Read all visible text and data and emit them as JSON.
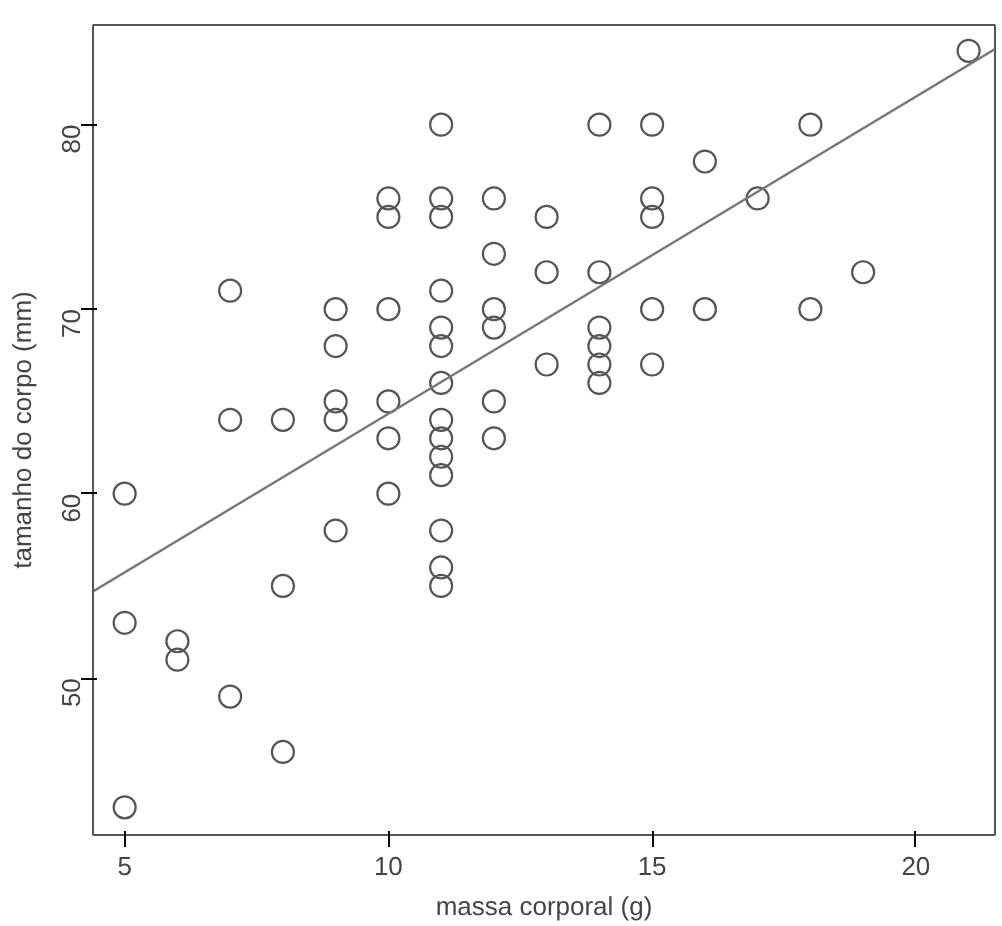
{
  "chart_data": {
    "type": "scatter",
    "xlabel": "massa corporal (g)",
    "ylabel": "tamanho do corpo (mm)",
    "xlim": [
      4.4,
      21.5
    ],
    "ylim": [
      41.5,
      85.4
    ],
    "xticks": [
      5,
      10,
      15,
      20
    ],
    "yticks": [
      50,
      60,
      70,
      80
    ],
    "grid": false,
    "marker": "circle",
    "series": [
      {
        "color": "#555555",
        "x": [
          5,
          5,
          5,
          6,
          6,
          7,
          7,
          7,
          8,
          8,
          8,
          9,
          9,
          9,
          9,
          9,
          10,
          10,
          10,
          10,
          10,
          10,
          11,
          11,
          11,
          11,
          11,
          11,
          11,
          11,
          11,
          11,
          11,
          11,
          11,
          11,
          12,
          12,
          12,
          12,
          12,
          12,
          13,
          13,
          13,
          14,
          14,
          14,
          14,
          14,
          14,
          15,
          15,
          15,
          15,
          15,
          16,
          16,
          17,
          18,
          18,
          19,
          21
        ],
        "values": [
          60,
          53,
          43,
          52,
          51,
          71,
          64,
          49,
          64,
          55,
          46,
          70,
          68,
          65,
          64,
          58,
          76,
          75,
          70,
          65,
          63,
          60,
          80,
          76,
          75,
          71,
          69,
          68,
          66,
          64,
          63,
          62,
          61,
          58,
          56,
          55,
          76,
          73,
          70,
          69,
          65,
          63,
          75,
          72,
          67,
          80,
          72,
          69,
          68,
          67,
          66,
          80,
          76,
          75,
          70,
          67,
          78,
          70,
          76,
          80,
          70,
          72,
          84
        ]
      },
      {
        "type": "line",
        "color": "#777777",
        "x": [
          4.4,
          21.5
        ],
        "values": [
          54.7,
          84.1
        ],
        "line_style": "solid",
        "marker": "none"
      }
    ]
  }
}
